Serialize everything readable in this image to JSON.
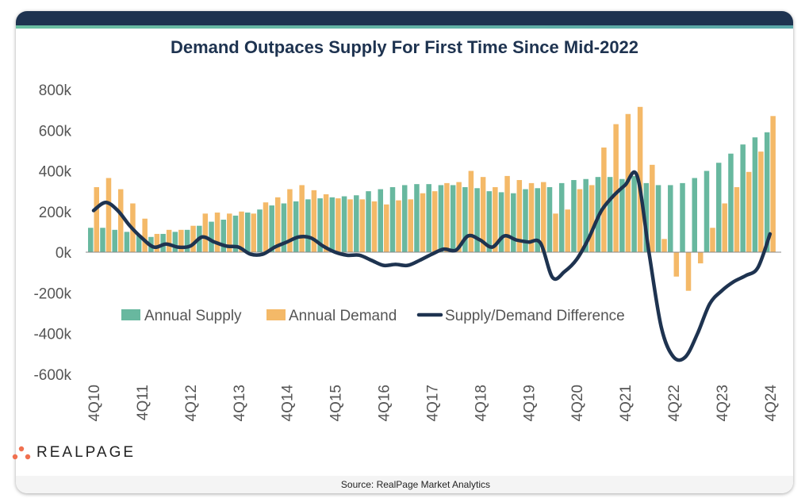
{
  "chart_data": {
    "type": "bar",
    "title": "Demand Outpaces Supply For First Time Since Mid-2022",
    "categories": [
      "4Q10",
      "1Q11",
      "2Q11",
      "3Q11",
      "4Q11",
      "1Q12",
      "2Q12",
      "3Q12",
      "4Q12",
      "1Q13",
      "2Q13",
      "3Q13",
      "4Q13",
      "1Q14",
      "2Q14",
      "3Q14",
      "4Q14",
      "1Q15",
      "2Q15",
      "3Q15",
      "4Q15",
      "1Q16",
      "2Q16",
      "3Q16",
      "4Q16",
      "1Q17",
      "2Q17",
      "3Q17",
      "4Q17",
      "1Q18",
      "2Q18",
      "3Q18",
      "4Q18",
      "1Q19",
      "2Q19",
      "3Q19",
      "4Q19",
      "1Q20",
      "2Q20",
      "3Q20",
      "4Q20",
      "1Q21",
      "2Q21",
      "3Q21",
      "4Q21",
      "1Q22",
      "2Q22",
      "3Q22",
      "4Q22",
      "1Q23",
      "2Q23",
      "3Q23",
      "4Q23",
      "1Q24",
      "2Q24",
      "3Q24",
      "4Q24"
    ],
    "x_tick_labels": [
      "4Q10",
      "4Q11",
      "4Q12",
      "4Q13",
      "4Q14",
      "4Q15",
      "4Q16",
      "4Q17",
      "4Q18",
      "4Q19",
      "4Q20",
      "4Q21",
      "4Q22",
      "4Q23",
      "4Q24"
    ],
    "y_tick_labels": [
      "800k",
      "600k",
      "400k",
      "200k",
      "0k",
      "-200k",
      "-400k",
      "-600k"
    ],
    "ylim": [
      -600000,
      800000
    ],
    "grid": false,
    "legend_position": "center",
    "series": [
      {
        "name": "Annual Supply",
        "type": "bar",
        "color": "#68b89f",
        "values": [
          120000,
          120000,
          110000,
          100000,
          85000,
          75000,
          90000,
          100000,
          110000,
          130000,
          150000,
          160000,
          180000,
          195000,
          210000,
          230000,
          240000,
          250000,
          260000,
          265000,
          270000,
          275000,
          280000,
          300000,
          310000,
          320000,
          330000,
          335000,
          335000,
          330000,
          330000,
          320000,
          315000,
          300000,
          295000,
          290000,
          310000,
          315000,
          320000,
          340000,
          355000,
          360000,
          370000,
          370000,
          360000,
          375000,
          340000,
          330000,
          330000,
          340000,
          365000,
          400000,
          440000,
          485000,
          530000,
          565000,
          590000
        ]
      },
      {
        "name": "Annual Demand",
        "type": "bar",
        "color": "#f4b968",
        "values": [
          320000,
          365000,
          310000,
          240000,
          165000,
          90000,
          110000,
          110000,
          130000,
          190000,
          195000,
          190000,
          200000,
          190000,
          245000,
          270000,
          310000,
          330000,
          305000,
          285000,
          265000,
          260000,
          260000,
          250000,
          235000,
          255000,
          260000,
          290000,
          300000,
          340000,
          345000,
          400000,
          370000,
          320000,
          375000,
          355000,
          340000,
          345000,
          190000,
          210000,
          310000,
          330000,
          515000,
          630000,
          680000,
          715000,
          430000,
          65000,
          -120000,
          -190000,
          -55000,
          120000,
          240000,
          320000,
          395000,
          495000,
          670000
        ]
      },
      {
        "name": "Supply/Demand Difference",
        "type": "line",
        "color": "#1e3350",
        "values": [
          205000,
          245000,
          205000,
          130000,
          70000,
          25000,
          40000,
          25000,
          30000,
          75000,
          50000,
          30000,
          25000,
          -10000,
          -10000,
          25000,
          50000,
          75000,
          70000,
          30000,
          0,
          -15000,
          -15000,
          -40000,
          -65000,
          -60000,
          -65000,
          -40000,
          -10000,
          15000,
          10000,
          80000,
          60000,
          25000,
          80000,
          60000,
          50000,
          45000,
          -125000,
          -95000,
          -35000,
          70000,
          200000,
          275000,
          330000,
          375000,
          -10000,
          -370000,
          -515000,
          -515000,
          -400000,
          -255000,
          -190000,
          -145000,
          -115000,
          -75000,
          90000
        ]
      }
    ]
  },
  "source": "Source: RealPage Market Analytics",
  "logo": {
    "text": "REALPAGE",
    "dot_color": "#f0704f"
  }
}
